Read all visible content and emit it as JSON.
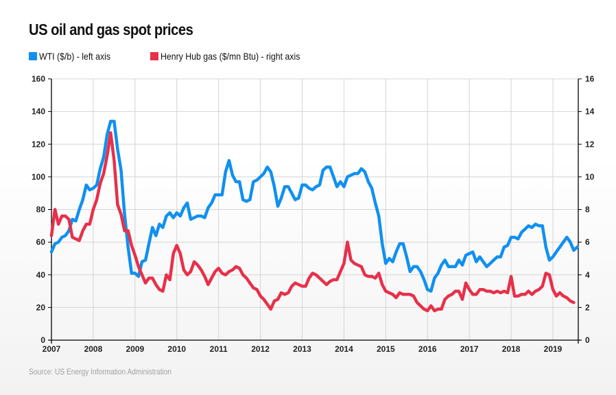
{
  "header": {
    "title": "US oil and gas spot prices"
  },
  "legend": [
    {
      "label": "WTI ($/b) - left axis",
      "color": "#1090f0"
    },
    {
      "label": "Henry Hub gas ($/mn Btu) - right axis",
      "color": "#e8304a"
    }
  ],
  "footer": {
    "source": "Source: US Energy Information Administration"
  },
  "chart_data": {
    "type": "line",
    "title": "US oil and gas spot prices",
    "xlabel": "",
    "ylabel_left": "WTI ($/b)",
    "ylabel_right": "Henry Hub gas ($/mn Btu)",
    "x_range": [
      2007,
      2019.62
    ],
    "ylim_left": [
      0,
      160
    ],
    "ylim_right": [
      0,
      16
    ],
    "yticks_left": [
      "0",
      "20",
      "40",
      "60",
      "80",
      "100",
      "120",
      "140",
      "160"
    ],
    "yticks_right": [
      "0",
      "2",
      "4",
      "6",
      "8",
      "10",
      "12",
      "14",
      "16"
    ],
    "xticks": [
      "2007",
      "2008",
      "2009",
      "2010",
      "2011",
      "2012",
      "2013",
      "2014",
      "2015",
      "2016",
      "2017",
      "2018",
      "2019"
    ],
    "grid": true,
    "legend_position": "top-left",
    "source": "Source: US Energy Information Administration",
    "series": [
      {
        "name": "WTI ($/b) - left axis",
        "axis": "left",
        "color": "#1090f0",
        "x_start": 2007.0,
        "x_step": 0.08333,
        "values": [
          54,
          59,
          60,
          63,
          64,
          67,
          74,
          73,
          80,
          86,
          95,
          92,
          93,
          95,
          105,
          112,
          126,
          134,
          134,
          117,
          104,
          77,
          57,
          41,
          41,
          39,
          48,
          49,
          59,
          69,
          64,
          71,
          69,
          76,
          78,
          75,
          78,
          76,
          81,
          84,
          74,
          75,
          76,
          76,
          75,
          81,
          84,
          89,
          89,
          89,
          103,
          110,
          101,
          97,
          97,
          86,
          85,
          86,
          97,
          98,
          100,
          102,
          106,
          103,
          94,
          82,
          87,
          94,
          94,
          90,
          86,
          87,
          95,
          95,
          93,
          92,
          94,
          95,
          104,
          106,
          106,
          100,
          94,
          97,
          94,
          100,
          101,
          102,
          102,
          105,
          103,
          97,
          93,
          84,
          76,
          59,
          47,
          50,
          48,
          54,
          59,
          59,
          51,
          42,
          45,
          45,
          42,
          37,
          31,
          30,
          38,
          41,
          46,
          49,
          45,
          45,
          45,
          49,
          46,
          52,
          53,
          54,
          48,
          51,
          48,
          45,
          47,
          49,
          51,
          51,
          57,
          58,
          63,
          63,
          62,
          66,
          68,
          70,
          69,
          71,
          70,
          70,
          57,
          49,
          51,
          54,
          57,
          60,
          63,
          60,
          55,
          57
        ]
      },
      {
        "name": "Henry Hub gas ($/mn Btu) - right axis",
        "axis": "right",
        "color": "#e8304a",
        "x_start": 2007.0,
        "x_step": 0.08333,
        "values": [
          6.4,
          8.0,
          7.1,
          7.6,
          7.6,
          7.4,
          6.3,
          6.2,
          6.1,
          6.7,
          7.1,
          7.1,
          8.0,
          8.6,
          9.6,
          10.2,
          11.3,
          12.7,
          11.0,
          8.3,
          7.7,
          6.7,
          6.7,
          5.8,
          5.2,
          4.5,
          4.0,
          3.5,
          3.8,
          3.8,
          3.4,
          3.1,
          3.0,
          4.0,
          3.7,
          5.3,
          5.8,
          5.3,
          4.3,
          4.0,
          4.2,
          4.8,
          4.6,
          4.3,
          3.9,
          3.4,
          3.8,
          4.2,
          4.4,
          4.1,
          4.0,
          4.2,
          4.3,
          4.5,
          4.4,
          4.0,
          3.8,
          3.5,
          3.2,
          3.1,
          2.7,
          2.5,
          2.2,
          1.9,
          2.4,
          2.5,
          2.9,
          2.8,
          2.9,
          3.3,
          3.5,
          3.4,
          3.3,
          3.3,
          3.8,
          4.1,
          4.0,
          3.8,
          3.6,
          3.4,
          3.6,
          3.7,
          3.7,
          4.2,
          4.7,
          6.0,
          4.9,
          4.7,
          4.6,
          4.5,
          4.0,
          3.9,
          3.9,
          3.8,
          4.1,
          3.4,
          3.0,
          2.9,
          2.8,
          2.6,
          2.9,
          2.8,
          2.8,
          2.8,
          2.7,
          2.3,
          2.1,
          1.9,
          1.8,
          2.1,
          1.8,
          1.9,
          1.9,
          2.5,
          2.7,
          2.8,
          3.0,
          3.0,
          2.5,
          3.5,
          3.1,
          2.8,
          2.8,
          3.1,
          3.1,
          3.0,
          3.0,
          2.9,
          3.0,
          2.9,
          3.0,
          2.9,
          3.9,
          2.7,
          2.7,
          2.8,
          2.8,
          3.0,
          2.8,
          3.0,
          3.1,
          3.3,
          4.1,
          4.0,
          3.1,
          2.7,
          2.9,
          2.7,
          2.6,
          2.4,
          2.3
        ]
      }
    ]
  }
}
